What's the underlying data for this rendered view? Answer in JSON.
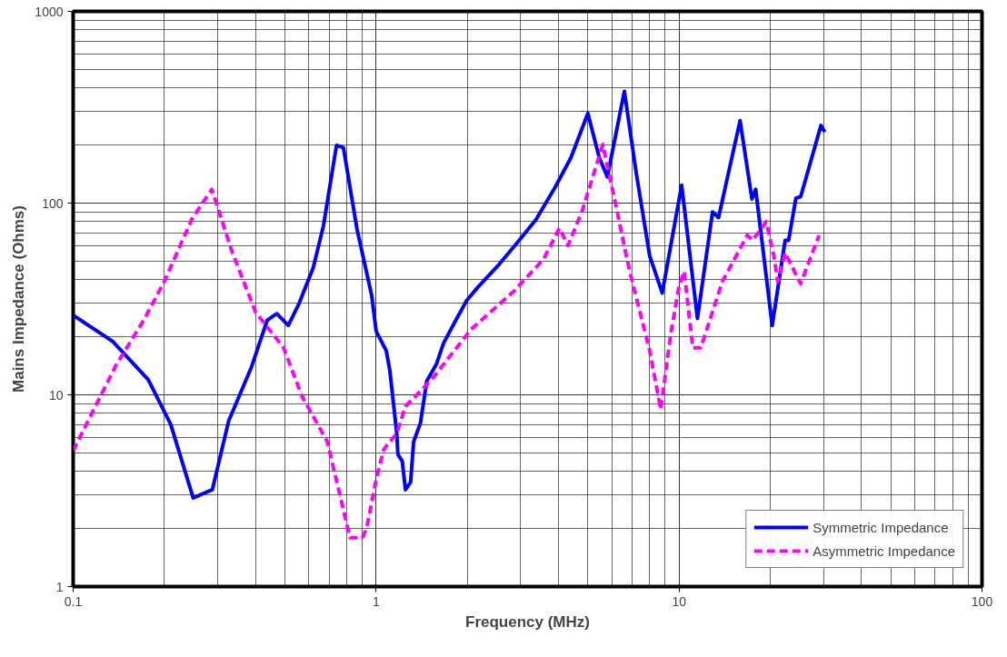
{
  "chart_data": {
    "type": "line",
    "xlabel": "Frequency (MHz)",
    "ylabel": "Mains Impedance (Ohms)",
    "log": "xy",
    "xlim": [
      0.1,
      100
    ],
    "ylim": [
      1,
      1000
    ],
    "xticks": [
      0.1,
      1,
      10,
      100
    ],
    "yticks": [
      1,
      10,
      100,
      1000
    ],
    "grid": true,
    "legend": "bottom right",
    "marker": "none",
    "series": [
      {
        "name": "Symmetric Impedance",
        "color": "#0000ff",
        "line_style": "solid",
        "x": [
          0.1,
          0.135,
          0.177,
          0.21,
          0.249,
          0.288,
          0.326,
          0.388,
          0.437,
          0.47,
          0.513,
          0.557,
          0.62,
          0.67,
          0.74,
          0.78,
          0.865,
          0.967,
          1.0,
          1.08,
          1.11,
          1.17,
          1.18,
          1.22,
          1.25,
          1.3,
          1.33,
          1.4,
          1.47,
          1.58,
          1.67,
          1.82,
          1.99,
          2.17,
          2.52,
          2.92,
          3.37,
          3.9,
          4.4,
          5.0,
          5.45,
          5.8,
          6.6,
          7.2,
          8.0,
          8.8,
          10.2,
          11.5,
          12.9,
          13.5,
          15.9,
          17.4,
          17.9,
          20.3,
          22.4,
          23.0,
          24.3,
          25.2,
          29.4,
          30.3
        ],
        "values": [
          26,
          19,
          12,
          7,
          2.9,
          3.2,
          7.3,
          14,
          24.5,
          26.5,
          23,
          30,
          46,
          76,
          200,
          195,
          73,
          33,
          21.5,
          17,
          13.4,
          6.3,
          4.9,
          4.5,
          3.2,
          3.5,
          5.7,
          7.1,
          11.8,
          14.4,
          18.6,
          24,
          31,
          36.5,
          47,
          62,
          82,
          121,
          173,
          294,
          173,
          137,
          383,
          148,
          53,
          34,
          124,
          25,
          90,
          84,
          269,
          105,
          118,
          23,
          64,
          64,
          106,
          108,
          254,
          235
        ]
      },
      {
        "name": "Asymmetric Impedance",
        "color": "#ff00ff",
        "line_style": "dashed",
        "x": [
          0.1,
          0.117,
          0.139,
          0.171,
          0.2,
          0.247,
          0.287,
          0.333,
          0.4,
          0.495,
          0.57,
          0.69,
          0.82,
          0.9,
          0.93,
          1.0,
          1.06,
          1.17,
          1.25,
          1.53,
          2.06,
          2.84,
          3.57,
          4.03,
          4.3,
          4.8,
          5.6,
          6.2,
          6.7,
          6.9,
          8.0,
          8.7,
          9.4,
          10.0,
          10.4,
          11.1,
          11.8,
          13.9,
          16.8,
          17.5,
          19.4,
          20.5,
          21.2,
          22.4,
          25.2,
          29.0
        ],
        "values": [
          5.1,
          8.4,
          14.4,
          24.5,
          39,
          83,
          118,
          57,
          27,
          17.6,
          9.8,
          5.7,
          1.8,
          1.8,
          2.0,
          3.6,
          5.2,
          6.3,
          8.7,
          12.1,
          22,
          34.5,
          51,
          74,
          60,
          92,
          202,
          96,
          53,
          43,
          17,
          8.4,
          21,
          37,
          44,
          17.6,
          17.6,
          39,
          68,
          64,
          80,
          54,
          39,
          55,
          38,
          68
        ]
      }
    ]
  }
}
